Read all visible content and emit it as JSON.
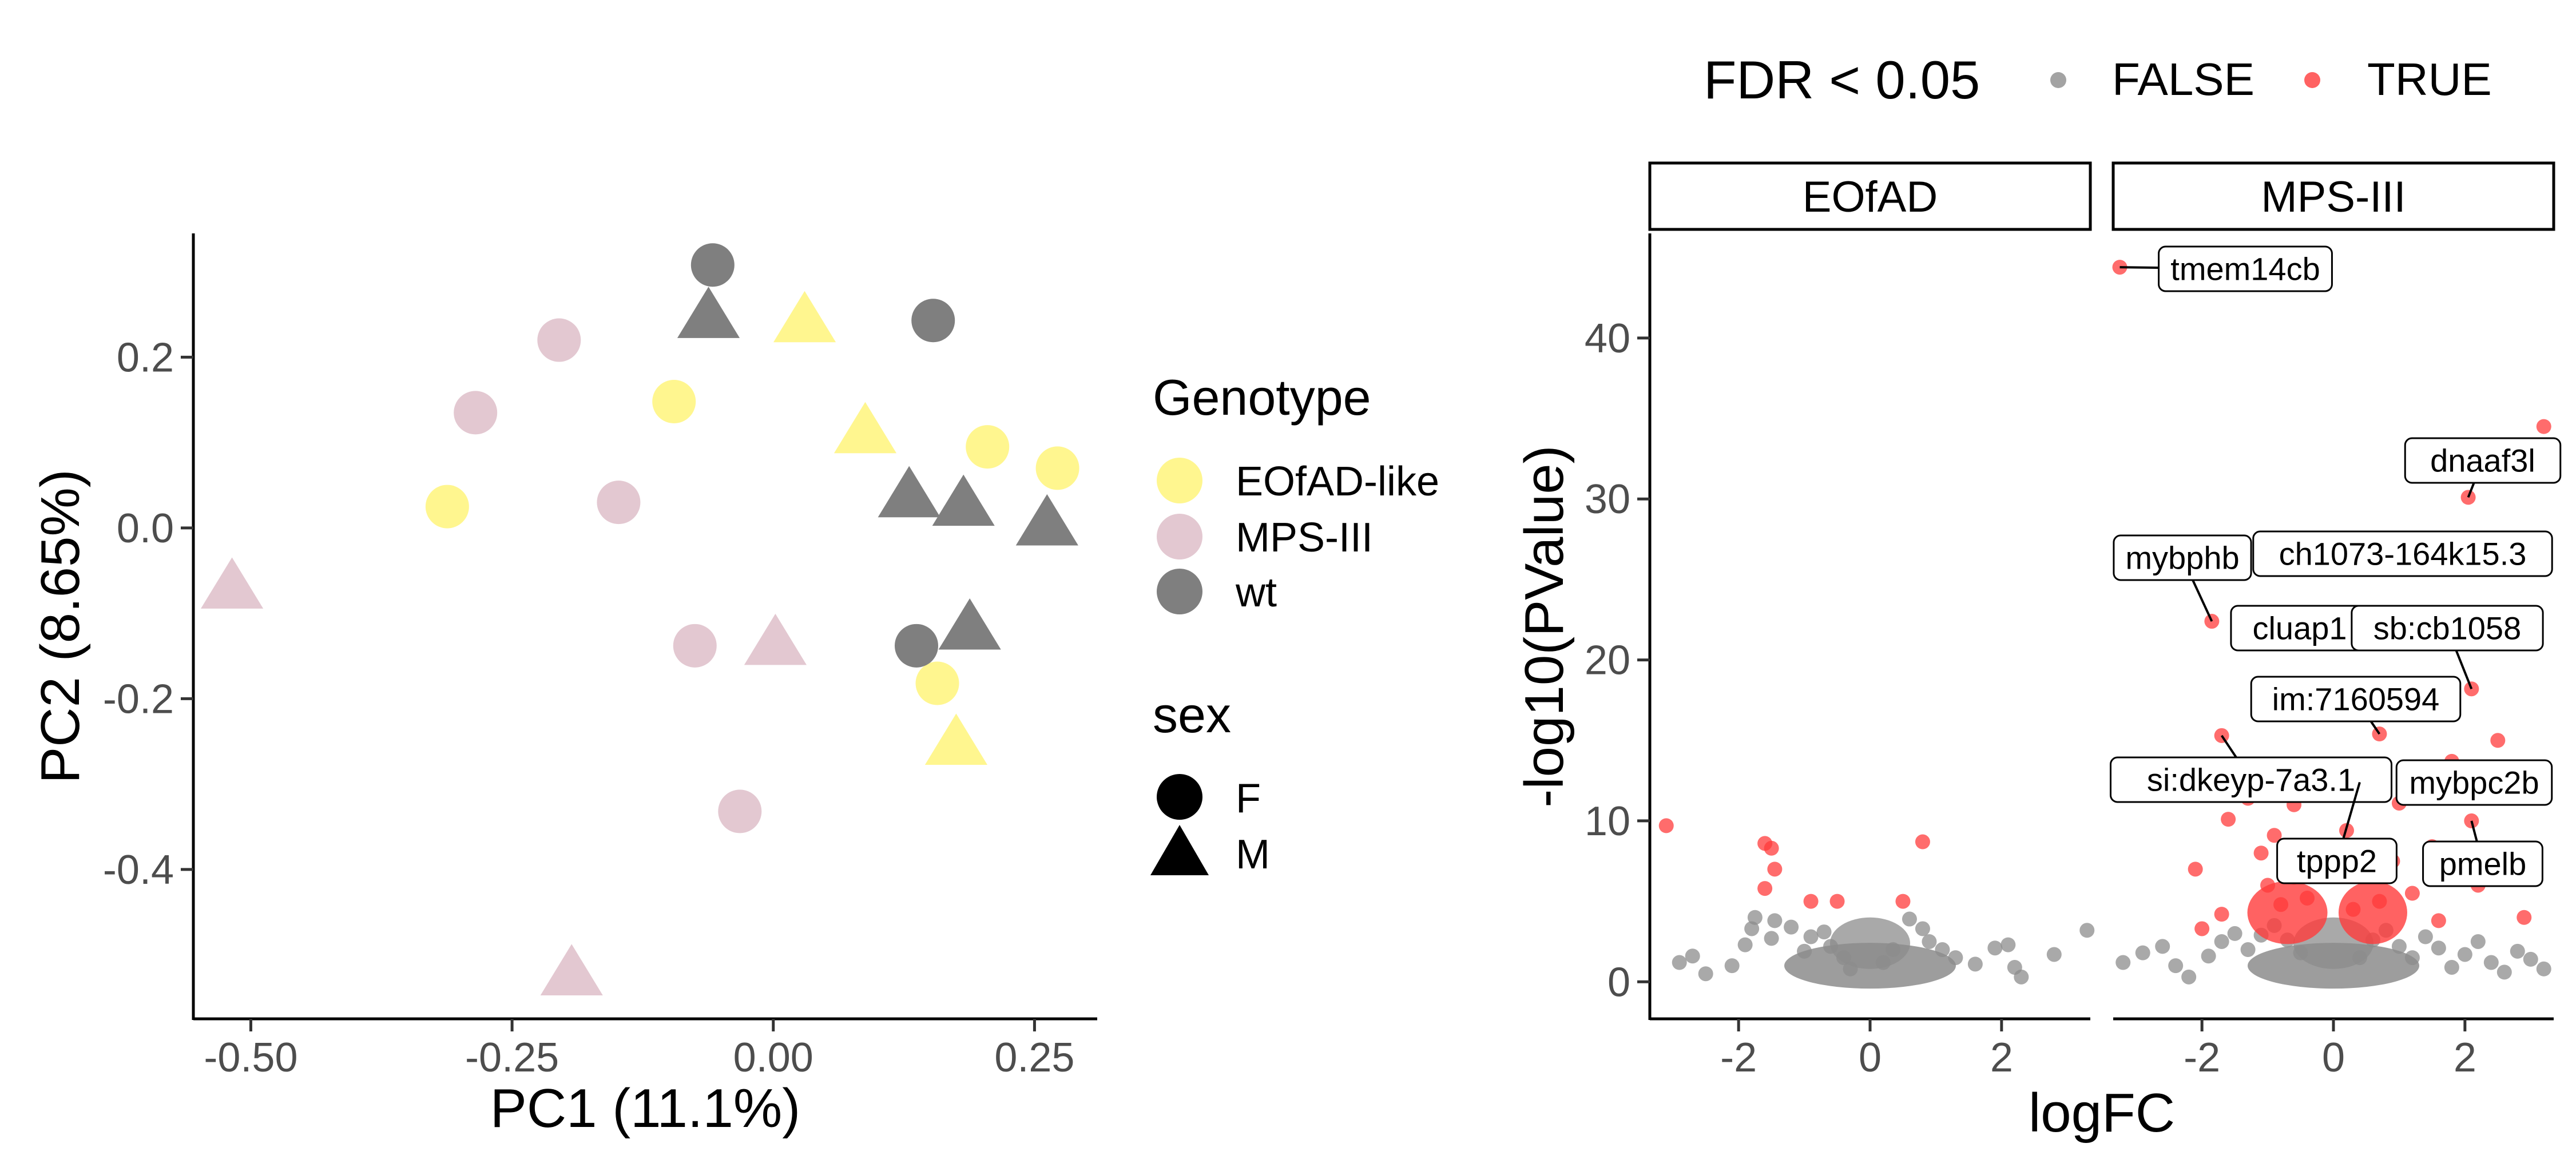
{
  "chart_data": [
    {
      "type": "scatter",
      "xlabel": "PC1 (11.1%)",
      "ylabel": "PC2 (8.65%)",
      "xlim": [
        -0.555,
        0.31
      ],
      "ylim": [
        -0.575,
        0.345
      ],
      "xticks": [
        -0.5,
        -0.25,
        0.0,
        0.25
      ],
      "xtick_labels": [
        "-0.50",
        "-0.25",
        "0.00",
        "0.25"
      ],
      "yticks": [
        -0.4,
        -0.2,
        0.0,
        0.2
      ],
      "ytick_labels": [
        "-0.4",
        "-0.2",
        "0.0",
        "0.2"
      ],
      "grid": false,
      "legend_position": "right",
      "legends": [
        {
          "title": "Genotype",
          "entries": [
            {
              "label": "EOfAD-like",
              "color": "#fff68f"
            },
            {
              "label": "MPS-III",
              "color": "#e3c8d1"
            },
            {
              "label": "wt",
              "color": "#7f7f7f"
            }
          ]
        },
        {
          "title": "sex",
          "entries": [
            {
              "label": "F",
              "shape": "circle"
            },
            {
              "label": "M",
              "shape": "triangle"
            }
          ]
        }
      ],
      "series": [
        {
          "name": "EOfAD-like",
          "color": "#fff68f",
          "points": [
            {
              "x": -0.312,
              "y": 0.025,
              "sex": "F"
            },
            {
              "x": -0.095,
              "y": 0.148,
              "sex": "F"
            },
            {
              "x": 0.03,
              "y": 0.24,
              "sex": "M"
            },
            {
              "x": 0.088,
              "y": 0.11,
              "sex": "M"
            },
            {
              "x": 0.205,
              "y": 0.095,
              "sex": "F"
            },
            {
              "x": 0.272,
              "y": 0.07,
              "sex": "F"
            },
            {
              "x": 0.157,
              "y": -0.182,
              "sex": "F"
            },
            {
              "x": 0.175,
              "y": -0.255,
              "sex": "M"
            }
          ]
        },
        {
          "name": "MPS-III",
          "color": "#e3c8d1",
          "points": [
            {
              "x": -0.518,
              "y": -0.072,
              "sex": "M"
            },
            {
              "x": -0.285,
              "y": 0.135,
              "sex": "F"
            },
            {
              "x": -0.205,
              "y": 0.22,
              "sex": "F"
            },
            {
              "x": -0.148,
              "y": 0.03,
              "sex": "F"
            },
            {
              "x": -0.075,
              "y": -0.138,
              "sex": "F"
            },
            {
              "x": 0.002,
              "y": -0.138,
              "sex": "M"
            },
            {
              "x": -0.032,
              "y": -0.332,
              "sex": "F"
            },
            {
              "x": -0.193,
              "y": -0.525,
              "sex": "M"
            }
          ]
        },
        {
          "name": "wt",
          "color": "#7f7f7f",
          "points": [
            {
              "x": -0.058,
              "y": 0.308,
              "sex": "F"
            },
            {
              "x": -0.062,
              "y": 0.245,
              "sex": "M"
            },
            {
              "x": 0.153,
              "y": 0.243,
              "sex": "F"
            },
            {
              "x": 0.13,
              "y": 0.035,
              "sex": "M"
            },
            {
              "x": 0.182,
              "y": 0.025,
              "sex": "M"
            },
            {
              "x": 0.262,
              "y": 0.002,
              "sex": "M"
            },
            {
              "x": 0.137,
              "y": -0.138,
              "sex": "F"
            },
            {
              "x": 0.188,
              "y": -0.12,
              "sex": "M"
            }
          ]
        }
      ]
    },
    {
      "type": "scatter",
      "xlabel": "logFC",
      "ylabel": "-log10(PValue)",
      "xlim": [
        -3.35,
        3.35
      ],
      "ylim": [
        -2.3,
        46.5
      ],
      "xticks": [
        -2,
        0,
        2
      ],
      "xtick_labels": [
        "-2",
        "0",
        "2"
      ],
      "yticks": [
        0,
        10,
        20,
        30,
        40
      ],
      "ytick_labels": [
        "0",
        "10",
        "20",
        "30",
        "40"
      ],
      "grid": false,
      "legend_position": "top",
      "legend": {
        "title": "FDR < 0.05",
        "entries": [
          {
            "label": "FALSE",
            "color": "#8c8c8c"
          },
          {
            "label": "TRUE",
            "color": "#ff3b3b"
          }
        ]
      },
      "panels": [
        {
          "strip": "EOfAD",
          "points_true": [
            [
              -3.1,
              9.7
            ],
            [
              -1.6,
              8.6
            ],
            [
              -1.5,
              8.3
            ],
            [
              -1.45,
              7.0
            ],
            [
              -1.6,
              5.8
            ],
            [
              -0.9,
              5.0
            ],
            [
              -0.5,
              5.0
            ],
            [
              0.5,
              5.0
            ],
            [
              0.8,
              8.7
            ]
          ],
          "points_false": [
            [
              -2.9,
              1.2
            ],
            [
              -2.7,
              1.6
            ],
            [
              -2.5,
              0.5
            ],
            [
              -2.1,
              1.0
            ],
            [
              -1.9,
              2.3
            ],
            [
              -1.8,
              3.3
            ],
            [
              -1.75,
              4.0
            ],
            [
              -1.5,
              2.7
            ],
            [
              -1.45,
              3.8
            ],
            [
              -1.2,
              3.4
            ],
            [
              -1.0,
              1.9
            ],
            [
              -0.9,
              2.8
            ],
            [
              -0.7,
              3.1
            ],
            [
              -0.6,
              2.2
            ],
            [
              -0.4,
              1.5
            ],
            [
              -0.3,
              0.8
            ],
            [
              0.2,
              1.2
            ],
            [
              0.35,
              2.0
            ],
            [
              0.6,
              3.9
            ],
            [
              0.8,
              3.3
            ],
            [
              0.9,
              2.5
            ],
            [
              1.1,
              2.0
            ],
            [
              1.3,
              1.5
            ],
            [
              1.6,
              1.1
            ],
            [
              1.9,
              2.1
            ],
            [
              2.1,
              2.3
            ],
            [
              2.2,
              0.9
            ],
            [
              2.3,
              0.3
            ],
            [
              2.8,
              1.7
            ],
            [
              3.3,
              3.2
            ]
          ]
        },
        {
          "strip": "MPS-III",
          "points_true": [
            [
              -3.25,
              44.4
            ],
            [
              2.05,
              30.1
            ],
            [
              -1.85,
              22.4
            ],
            [
              3.2,
              34.5
            ],
            [
              2.1,
              18.2
            ],
            [
              0.7,
              15.4
            ],
            [
              -1.7,
              15.3
            ],
            [
              2.5,
              15.0
            ],
            [
              1.8,
              13.7
            ],
            [
              1.2,
              12.6
            ],
            [
              -0.3,
              12.5
            ],
            [
              0.4,
              12.4
            ],
            [
              -1.3,
              11.4
            ],
            [
              1.0,
              11.1
            ],
            [
              -0.6,
              11.0
            ],
            [
              2.1,
              10.0
            ],
            [
              -1.6,
              10.1
            ],
            [
              0.2,
              9.4
            ],
            [
              -0.9,
              9.1
            ],
            [
              1.5,
              8.4
            ],
            [
              -1.1,
              8.0
            ],
            [
              0.9,
              7.5
            ],
            [
              -2.1,
              7.0
            ],
            [
              0.5,
              6.8
            ],
            [
              -0.6,
              6.5
            ],
            [
              2.2,
              6.0
            ],
            [
              -1.0,
              6.0
            ],
            [
              1.2,
              5.5
            ],
            [
              -0.4,
              5.2
            ],
            [
              0.7,
              5.0
            ],
            [
              2.9,
              4.0
            ],
            [
              -1.7,
              4.2
            ],
            [
              1.6,
              3.8
            ],
            [
              -2.0,
              3.3
            ],
            [
              0.3,
              4.5
            ],
            [
              -0.8,
              4.8
            ]
          ],
          "points_false": [
            [
              -3.2,
              1.2
            ],
            [
              -2.9,
              1.8
            ],
            [
              -2.6,
              2.2
            ],
            [
              -2.4,
              1.0
            ],
            [
              -2.2,
              0.3
            ],
            [
              -1.9,
              1.6
            ],
            [
              -1.7,
              2.5
            ],
            [
              -1.5,
              3.0
            ],
            [
              -1.3,
              2.0
            ],
            [
              -1.1,
              2.9
            ],
            [
              -0.9,
              3.5
            ],
            [
              -0.7,
              2.6
            ],
            [
              -0.5,
              1.8
            ],
            [
              0.4,
              1.5
            ],
            [
              0.6,
              2.6
            ],
            [
              0.8,
              3.2
            ],
            [
              1.0,
              2.2
            ],
            [
              1.2,
              1.5
            ],
            [
              1.4,
              2.8
            ],
            [
              1.6,
              2.1
            ],
            [
              1.8,
              0.9
            ],
            [
              2.0,
              1.7
            ],
            [
              2.2,
              2.5
            ],
            [
              2.4,
              1.2
            ],
            [
              2.6,
              0.6
            ],
            [
              2.8,
              1.9
            ],
            [
              3.0,
              1.4
            ],
            [
              3.2,
              0.8
            ]
          ],
          "annotations": [
            {
              "label": "tmem14cb",
              "x": -3.25,
              "y": 44.4
            },
            {
              "label": "dnaaf3l",
              "x": 2.05,
              "y": 30.1
            },
            {
              "label": "ch1073-164k15.3",
              "x": 3.2,
              "y": 26.0
            },
            {
              "label": "mybphb",
              "x": -1.85,
              "y": 22.4
            },
            {
              "label": "cluap1",
              "x": -0.6,
              "y": 21.5
            },
            {
              "label": "sb:cb1058",
              "x": 2.1,
              "y": 18.2
            },
            {
              "label": "im:7160594",
              "x": 0.7,
              "y": 15.4
            },
            {
              "label": "si:dkeyp-7a3.1",
              "x": -1.7,
              "y": 15.3
            },
            {
              "label": "mybpc2b",
              "x": 3.2,
              "y": 13.0
            },
            {
              "label": "tppp2",
              "x": 0.4,
              "y": 12.4
            },
            {
              "label": "pmelb",
              "x": 2.1,
              "y": 10.0
            }
          ]
        }
      ]
    }
  ]
}
